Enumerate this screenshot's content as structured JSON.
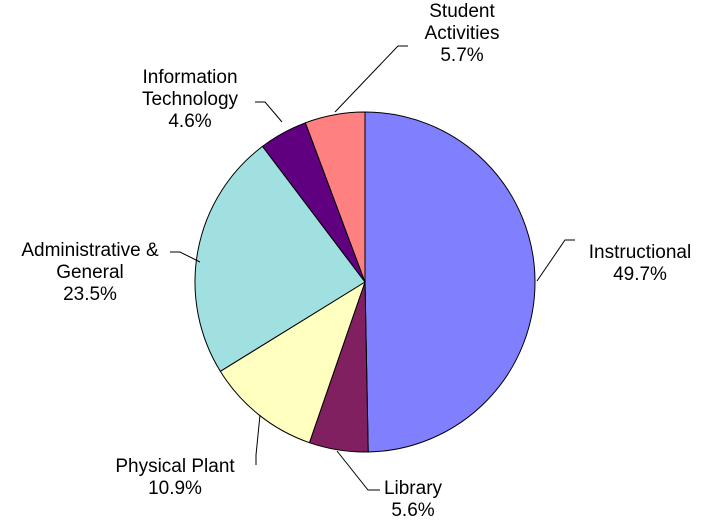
{
  "chart_data": {
    "type": "pie",
    "categories": [
      "Instructional",
      "Library",
      "Physical Plant",
      "Administrative & General",
      "Information Technology",
      "Student Activities"
    ],
    "values": [
      49.7,
      5.6,
      10.9,
      23.5,
      4.6,
      5.7
    ],
    "value_labels": [
      "49.7%",
      "5.6%",
      "10.9%",
      "23.5%",
      "4.6%",
      "5.7%"
    ],
    "colors": [
      "#8080ff",
      "#802060",
      "#ffffc0",
      "#a0e0e0",
      "#600080",
      "#ff8080"
    ]
  }
}
